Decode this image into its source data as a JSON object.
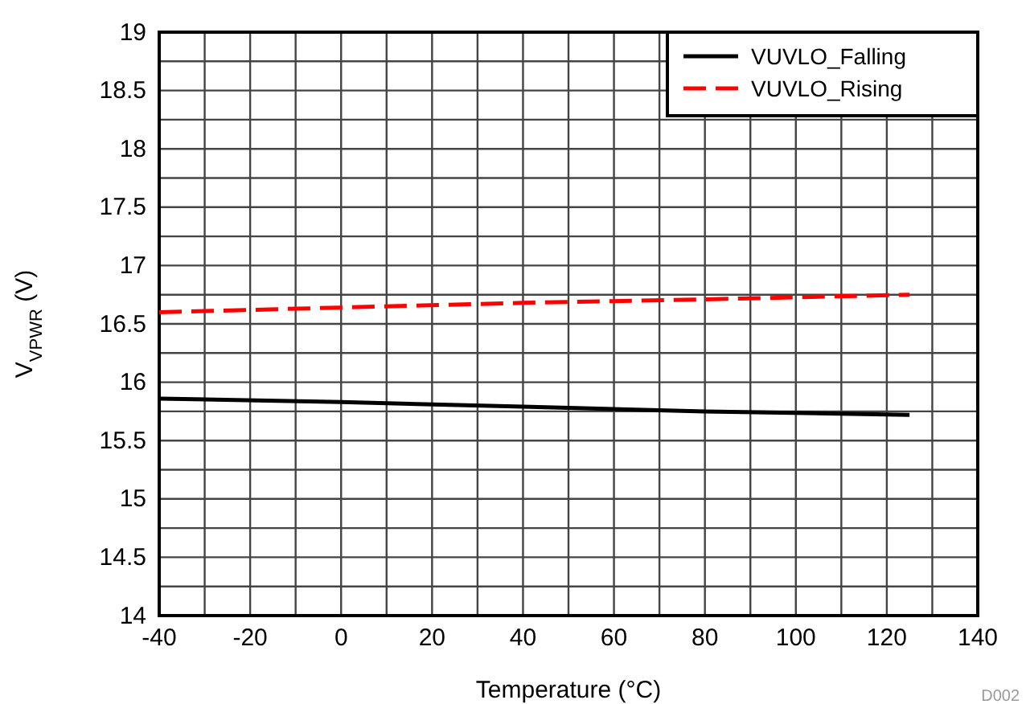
{
  "chart_data": {
    "type": "line",
    "xlabel": "Temperature (°C)",
    "ylabel": "V$_{VPWR}$ (V)",
    "annotations": [
      "D002"
    ],
    "series": [
      {
        "name": "VUVLO_Falling",
        "color": "#000000",
        "line_style": "solid",
        "x": [
          -40,
          0,
          40,
          80,
          125
        ],
        "values": [
          15.86,
          15.83,
          15.79,
          15.75,
          15.72
        ]
      },
      {
        "name": "VUVLO_Rising",
        "color": "#ff0000",
        "line_style": "dashed",
        "x": [
          -40,
          0,
          40,
          80,
          125
        ],
        "values": [
          16.6,
          16.64,
          16.68,
          16.71,
          16.75
        ]
      }
    ],
    "xlim": [
      -40,
      140
    ],
    "xticks": [
      -40,
      {
        "value": -30,
        "label": null
      },
      -20,
      {
        "value": -10,
        "label": null
      },
      0,
      {
        "value": 10,
        "label": null
      },
      20,
      {
        "value": 30,
        "label": null
      },
      40,
      {
        "value": 50,
        "label": null
      },
      60,
      {
        "value": 70,
        "label": null
      },
      80,
      {
        "value": 90,
        "label": null
      },
      100,
      {
        "value": 110,
        "label": null
      },
      120,
      {
        "value": 130,
        "label": null
      },
      140
    ],
    "ylim": [
      14,
      19
    ],
    "yticks": [
      14,
      {
        "value": 14.25,
        "label": null
      },
      14.5,
      {
        "value": 14.75,
        "label": null
      },
      15,
      {
        "value": 15.25,
        "label": null
      },
      15.5,
      {
        "value": 15.75,
        "label": null
      },
      16,
      {
        "value": 16.25,
        "label": null
      },
      16.5,
      {
        "value": 16.75,
        "label": null
      },
      17,
      {
        "value": 17.25,
        "label": null
      },
      17.5,
      {
        "value": 17.75,
        "label": null
      },
      18,
      {
        "value": 18.25,
        "label": null
      },
      18.5,
      {
        "value": 18.75,
        "label": null
      },
      19
    ],
    "grid": true,
    "legend": "top right"
  }
}
